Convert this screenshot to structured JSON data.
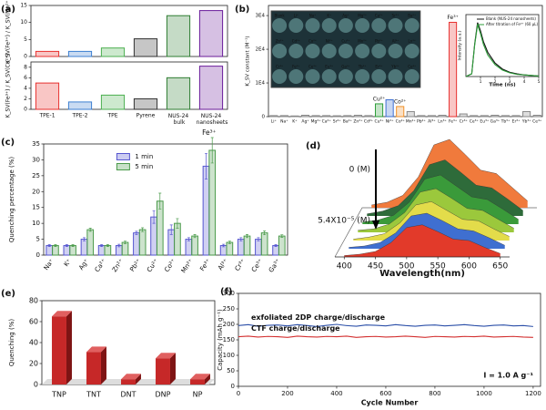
{
  "chart_data": [
    {
      "type": "bar",
      "panel_label": "(a)",
      "y_label": "K_SV(Fe³⁺) / K_SV(Mn²⁺)",
      "values": [
        1.5,
        1.5,
        2.5,
        5.2,
        12,
        13.5
      ],
      "colors": [
        "#e8312f",
        "#3d7fd1",
        "#4caf50",
        "#333333",
        "#2e7d32",
        "#6a1b9a"
      ],
      "ylim": [
        0,
        15
      ],
      "yticks": [
        0,
        5,
        10,
        15
      ]
    },
    {
      "type": "bar",
      "y_label": "K_SV(Fe³⁺) / K_SV(Cu²⁺)",
      "categories": [
        "TPE-1",
        "TPE-2",
        "TPE",
        "Pyrene",
        "NUS-24 bulk",
        "NUS-24 nanosheets"
      ],
      "values": [
        5,
        1.4,
        2.7,
        2,
        6,
        8.2
      ],
      "colors": [
        "#e8312f",
        "#3d7fd1",
        "#4caf50",
        "#333333",
        "#2e7d32",
        "#6a1b9a"
      ],
      "ylim": [
        0,
        9
      ],
      "yticks": [
        0,
        2,
        4,
        6,
        8
      ]
    },
    {
      "type": "bar",
      "panel_label": "(b)",
      "y_label": "K_SV constant (M⁻¹)",
      "categories": [
        "Li⁺",
        "Na⁺",
        "K⁺",
        "Ag⁺",
        "Mg²⁺",
        "Ca²⁺",
        "Sr²⁺",
        "Ba²⁺",
        "Zn²⁺",
        "Cd²⁺",
        "Cu²⁺",
        "Ni²⁺",
        "Co²⁺",
        "Mn²⁺",
        "Pb²⁺",
        "Al³⁺",
        "Ln³⁺",
        "Fe³⁺",
        "Cr³⁺",
        "Ce³⁺",
        "Eu³⁺",
        "Ga³⁺",
        "Tb³⁺",
        "Er³⁺",
        "Yb³⁺",
        "Ce⁴⁺"
      ],
      "values": [
        300,
        300,
        200,
        400,
        300,
        300,
        250,
        300,
        400,
        300,
        3800,
        5000,
        3000,
        1500,
        300,
        300,
        400,
        28000,
        800,
        300,
        300,
        400,
        300,
        300,
        1500,
        400
      ],
      "colors": [
        "#888888",
        "#888888",
        "#888888",
        "#888888",
        "#888888",
        "#888888",
        "#888888",
        "#888888",
        "#888888",
        "#888888",
        "#2e9e3a",
        "#3d6fd1",
        "#f0902a",
        "#888888",
        "#888888",
        "#888888",
        "#888888",
        "#e8312f",
        "#888888",
        "#888888",
        "#888888",
        "#888888",
        "#888888",
        "#888888",
        "#888888",
        "#888888"
      ],
      "annotations": [
        "Fe³⁺",
        "Cu²⁺",
        "Co²⁺"
      ],
      "ylim": [
        0,
        33000
      ],
      "yticks": [
        0,
        {
          "value": 10000,
          "label": "1E4"
        },
        {
          "value": 20000,
          "label": "2E4"
        },
        {
          "value": 30000,
          "label": "3E4"
        }
      ],
      "inset_labels": [
        [
          "Blank",
          "Li⁺",
          "Na⁺",
          "K⁺",
          "Ag⁺",
          "Mg²⁺",
          "Ca²⁺",
          "Sr²⁺",
          "Ba²⁺"
        ],
        [
          "Zn²⁺",
          "Cd²⁺",
          "Co²⁺",
          "Ni²⁺",
          "Cu²⁺",
          "Mn²⁺",
          "Pb²⁺",
          "Al³⁺",
          "Ln³⁺"
        ],
        [
          "Cr³⁺",
          "Fe³⁺",
          "Ce³⁺",
          "Eu³⁺",
          "Ga³⁺",
          "Tb³⁺",
          "Er³⁺",
          "Yb³⁺",
          "Ce⁴⁺"
        ]
      ]
    },
    {
      "type": "line",
      "x_label": "Time (ns)",
      "y_label": "Intensity (a.u.)",
      "x": [
        0,
        0.4,
        0.6,
        0.8,
        1,
        1.2,
        1.5,
        2,
        2.5,
        3,
        3.5,
        4,
        4.5,
        5
      ],
      "series": [
        {
          "name": "Blank (NUS-24 nanosheets)",
          "color": "#111111",
          "values": [
            0,
            0.05,
            0.6,
            1,
            0.85,
            0.65,
            0.45,
            0.25,
            0.14,
            0.08,
            0.05,
            0.03,
            0.02,
            0.01
          ]
        },
        {
          "name": "After titration of Fe³⁺ (60 µL)",
          "color": "#2e9e3a",
          "values": [
            0,
            0.05,
            0.58,
            0.96,
            0.8,
            0.6,
            0.4,
            0.22,
            0.12,
            0.07,
            0.04,
            0.03,
            0.02,
            0.01
          ]
        }
      ],
      "xlim": [
        0,
        5
      ],
      "xticks": [
        1,
        2,
        3,
        4,
        5
      ],
      "ylim": [
        0,
        1.15
      ],
      "legend": "upper right"
    },
    {
      "type": "bar",
      "panel_label": "(c)",
      "y_label": "Quenching percentage (%)",
      "categories": [
        "Na⁺",
        "K⁺",
        "Ag⁺",
        "Ca²⁺",
        "Zn²⁺",
        "Pb²⁺",
        "Cu²⁺",
        "Co²⁺",
        "Mn²⁺",
        "Fe³⁺",
        "Al³⁺",
        "Cr³⁺",
        "Ce³⁺",
        "Ga³⁺"
      ],
      "series": [
        {
          "name": "1 min",
          "color": "#5656d0",
          "values": [
            3,
            3,
            5,
            3,
            3,
            7,
            12,
            8,
            5,
            28,
            3,
            5,
            5,
            3
          ],
          "errors": [
            0.3,
            0.3,
            0.5,
            0.3,
            0.4,
            0.5,
            2,
            1.5,
            0.5,
            4,
            0.4,
            0.5,
            0.5,
            0.3
          ]
        },
        {
          "name": "5 min",
          "color": "#4a9a4a",
          "values": [
            3,
            3,
            8,
            3,
            4,
            8,
            17,
            10,
            6,
            33,
            4,
            6,
            7,
            6
          ],
          "errors": [
            0.3,
            0.3,
            0.5,
            0.3,
            0.4,
            0.6,
            2.5,
            1.5,
            0.5,
            4,
            0.4,
            0.5,
            0.6,
            0.4
          ]
        }
      ],
      "annotations": [
        "Fe³⁺"
      ],
      "ylim": [
        0,
        35
      ],
      "yticks": [
        0,
        5,
        10,
        15,
        20,
        25,
        30,
        35
      ],
      "legend": "upper center"
    },
    {
      "type": "waterfall",
      "panel_label": "(d)",
      "x_label": "Wavelength(nm)",
      "top_label": "0 (M)",
      "bottom_label": "5.4X10⁻⁵ (M)",
      "x": [
        400,
        425,
        450,
        475,
        500,
        525,
        550,
        575,
        600,
        625,
        650
      ],
      "series": [
        {
          "color": "#f07a3c",
          "values": [
            4,
            8,
            18,
            45,
            92,
            100,
            78,
            55,
            50,
            30,
            10
          ]
        },
        {
          "color": "#2e6b3a",
          "values": [
            3,
            7,
            15,
            37,
            75,
            82,
            64,
            45,
            41,
            25,
            8
          ]
        },
        {
          "color": "#3a9a3a",
          "values": [
            3,
            6,
            13,
            32,
            66,
            72,
            56,
            40,
            36,
            22,
            7
          ]
        },
        {
          "color": "#9bc83c",
          "values": [
            3,
            5,
            12,
            29,
            59,
            64,
            50,
            35,
            32,
            19,
            6
          ]
        },
        {
          "color": "#e3dc4a",
          "values": [
            2,
            5,
            10,
            26,
            52,
            57,
            44,
            31,
            29,
            17,
            6
          ]
        },
        {
          "color": "#3f6fd0",
          "values": [
            2,
            4,
            9,
            23,
            48,
            52,
            41,
            29,
            26,
            16,
            5
          ]
        },
        {
          "color": "#e23a2a",
          "values": [
            2,
            4,
            8,
            21,
            43,
            47,
            37,
            26,
            24,
            14,
            5
          ]
        }
      ],
      "xlim": [
        385,
        665
      ],
      "xticks": [
        400,
        450,
        500,
        550,
        600,
        650
      ],
      "ylim": [
        0,
        100
      ]
    },
    {
      "type": "bar3d",
      "panel_label": "(e)",
      "y_label": "Quenching (%)",
      "categories": [
        "TNP",
        "TNT",
        "DNT",
        "DNP",
        "NP"
      ],
      "values": [
        65,
        31,
        5,
        25,
        5
      ],
      "color": "#c62828",
      "ylim": [
        0,
        80
      ],
      "yticks": [
        0,
        20,
        40,
        60,
        80
      ]
    },
    {
      "type": "line",
      "panel_label": "(f)",
      "x_label": "Cycle Number",
      "y_label": "Capacity (mAh g⁻¹)",
      "note": "I = 1.0 A g⁻¹",
      "x": [
        0,
        40,
        80,
        120,
        160,
        200,
        240,
        280,
        320,
        360,
        400,
        440,
        480,
        520,
        560,
        600,
        640,
        680,
        720,
        760,
        800,
        840,
        880,
        920,
        960,
        1000,
        1040,
        1080,
        1120,
        1160,
        1200
      ],
      "series": [
        {
          "name": "exfoliated 2DP charge/discharge",
          "color": "#2b4fa8",
          "values": [
            196,
            199,
            194,
            197,
            198,
            195,
            199,
            196,
            193,
            197,
            200,
            196,
            194,
            198,
            197,
            195,
            199,
            196,
            194,
            197,
            198,
            195,
            197,
            199,
            196,
            194,
            197,
            198,
            195,
            196,
            193
          ]
        },
        {
          "name": "CTF charge/discharge",
          "color": "#d32f2f",
          "values": [
            160,
            162,
            159,
            161,
            160,
            158,
            162,
            160,
            159,
            161,
            160,
            162,
            158,
            160,
            161,
            159,
            160,
            162,
            160,
            158,
            161,
            160,
            159,
            161,
            160,
            162,
            159,
            160,
            161,
            159,
            158
          ]
        }
      ],
      "xlim": [
        0,
        1230
      ],
      "xticks": [
        0,
        200,
        400,
        600,
        800,
        1000,
        1200
      ],
      "ylim": [
        0,
        300
      ],
      "yticks": [
        0,
        50,
        100,
        150,
        200,
        250,
        300
      ],
      "legend": "on-line"
    }
  ]
}
